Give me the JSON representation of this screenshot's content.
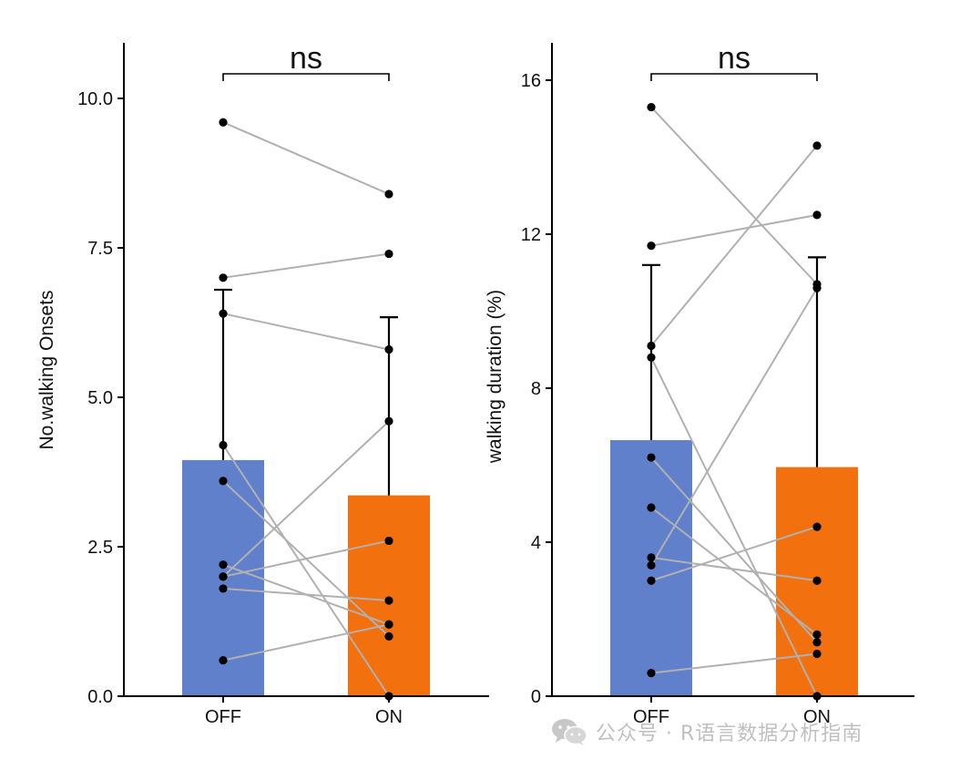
{
  "chart_data": [
    {
      "type": "bar",
      "categories": [
        "OFF",
        "ON"
      ],
      "colors": [
        "#6180cc",
        "#f2700e"
      ],
      "bar_values": [
        3.95,
        3.36
      ],
      "error_upper": [
        6.8,
        6.34
      ],
      "ylabel": "No.walking Onsets",
      "ylim": [
        0,
        11
      ],
      "yticks": [
        "0.0",
        "2.5",
        "5.0",
        "7.5",
        "10.0"
      ],
      "ytick_values": [
        0,
        2.5,
        5,
        7.5,
        10
      ],
      "significance": "ns",
      "pairs": [
        {
          "off": 9.6,
          "on": 8.4
        },
        {
          "off": 7.0,
          "on": 7.4
        },
        {
          "off": 6.4,
          "on": 5.8
        },
        {
          "off": 4.2,
          "on": 0.0
        },
        {
          "off": 3.6,
          "on": 1.0
        },
        {
          "off": 2.2,
          "on": 1.2
        },
        {
          "off": 2.0,
          "on": 4.6
        },
        {
          "off": 2.0,
          "on": 2.6
        },
        {
          "off": 1.8,
          "on": 1.6
        },
        {
          "off": 0.6,
          "on": 1.2
        }
      ]
    },
    {
      "type": "bar",
      "categories": [
        "OFF",
        "ON"
      ],
      "colors": [
        "#6180cc",
        "#f2700e"
      ],
      "bar_values": [
        6.65,
        5.95
      ],
      "error_upper": [
        11.2,
        11.4
      ],
      "ylabel": "walking duration (%)",
      "ylim": [
        0,
        17
      ],
      "yticks": [
        "0",
        "4",
        "8",
        "12",
        "16"
      ],
      "ytick_values": [
        0,
        4,
        8,
        12,
        16
      ],
      "significance": "ns",
      "pairs": [
        {
          "off": 15.3,
          "on": 10.7
        },
        {
          "off": 11.7,
          "on": 12.5
        },
        {
          "off": 9.1,
          "on": 14.3
        },
        {
          "off": 8.8,
          "on": 0.0
        },
        {
          "off": 6.2,
          "on": 1.4
        },
        {
          "off": 4.9,
          "on": 1.6
        },
        {
          "off": 3.6,
          "on": 3.0
        },
        {
          "off": 3.4,
          "on": 10.6
        },
        {
          "off": 3.0,
          "on": 4.4
        },
        {
          "off": 0.6,
          "on": 1.1
        }
      ]
    }
  ],
  "watermark": {
    "icon": "wechat-icon",
    "text": "公众号 · R语言数据分析指南"
  }
}
